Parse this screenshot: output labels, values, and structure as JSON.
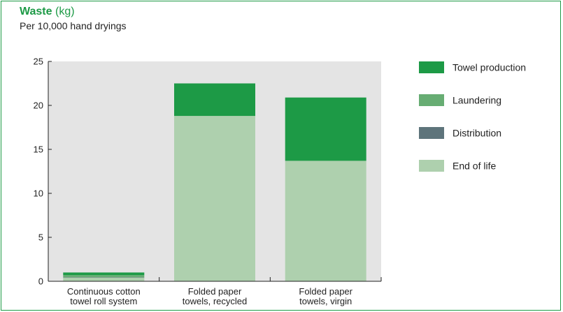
{
  "chart_data": {
    "type": "bar",
    "stacked": true,
    "title": "Waste",
    "title_unit": "(kg)",
    "subtitle": "Per 10,000 hand dryings",
    "categories": [
      [
        "Continuous cotton",
        "towel roll system"
      ],
      [
        "Folded paper",
        "towels, recycled"
      ],
      [
        "Folded paper",
        "towels, virgin"
      ]
    ],
    "series": [
      {
        "name": "End of life",
        "color": "#aed0ae",
        "values": [
          0.4,
          18.8,
          13.7
        ]
      },
      {
        "name": "Distribution",
        "color": "#5e747b",
        "values": [
          0.05,
          0,
          0
        ]
      },
      {
        "name": "Laundering",
        "color": "#67ad73",
        "values": [
          0.25,
          0,
          0
        ]
      },
      {
        "name": "Towel production",
        "color": "#1d9a46",
        "values": [
          0.3,
          3.7,
          7.2
        ]
      }
    ],
    "legend_order": [
      "Towel production",
      "Laundering",
      "Distribution",
      "End of life"
    ],
    "legend_position": "right",
    "ylim": [
      0,
      25
    ],
    "yticks": [
      "0",
      "5",
      "10",
      "15",
      "20",
      "25"
    ],
    "grid": false,
    "plot_background": "#e4e4e4"
  }
}
